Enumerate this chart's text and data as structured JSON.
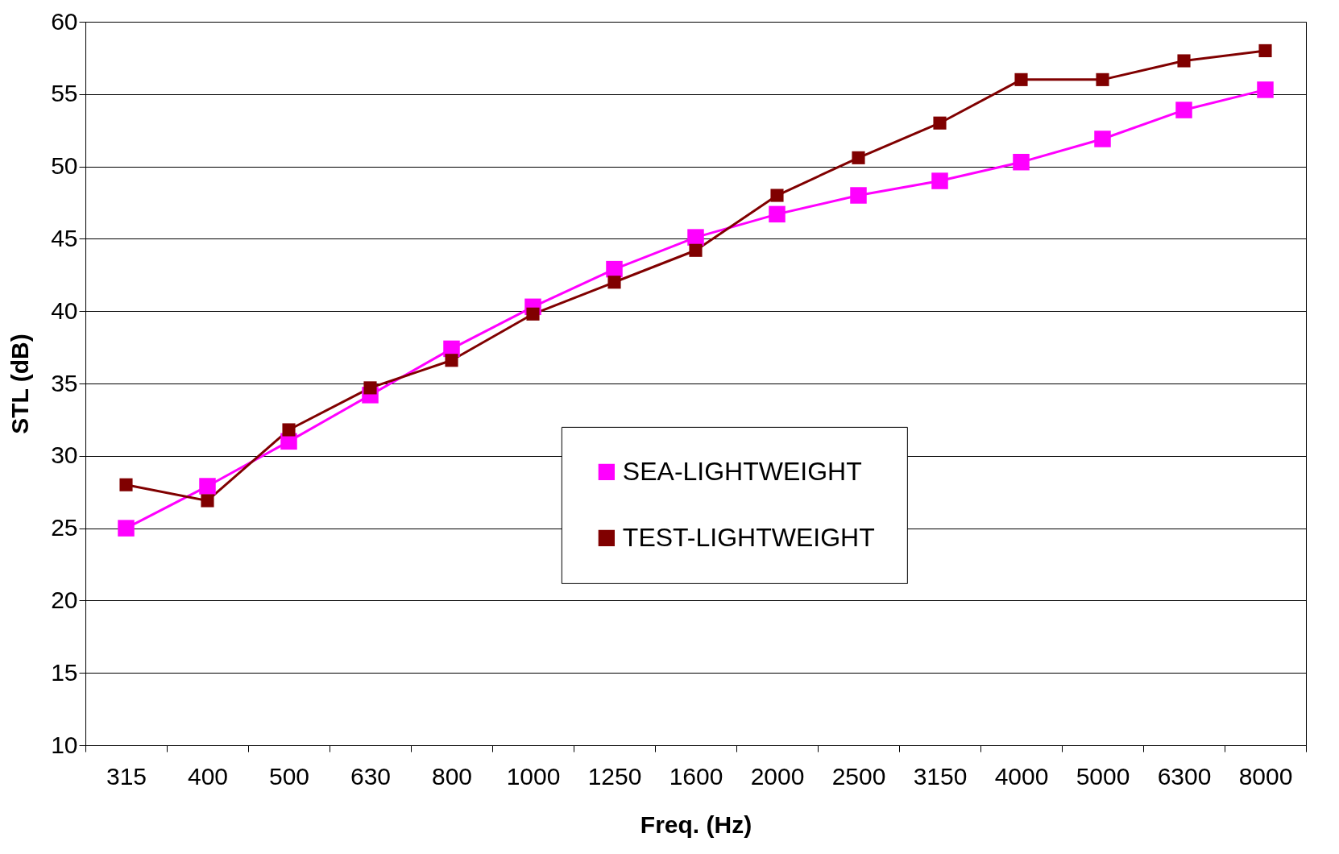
{
  "chart_data": {
    "type": "line",
    "xlabel": "Freq. (Hz)",
    "ylabel": "STL (dB)",
    "categories": [
      "315",
      "400",
      "500",
      "630",
      "800",
      "1000",
      "1250",
      "1600",
      "2000",
      "2500",
      "3150",
      "4000",
      "5000",
      "6300",
      "8000"
    ],
    "series": [
      {
        "name": "SEA-LIGHTWEIGHT",
        "color": "#ff00ff",
        "values": [
          25.0,
          27.9,
          31.0,
          34.2,
          37.4,
          40.3,
          42.9,
          45.1,
          46.7,
          48.0,
          49.0,
          50.3,
          51.9,
          53.9,
          55.3
        ]
      },
      {
        "name": "TEST-LIGHTWEIGHT",
        "color": "#800000",
        "values": [
          28.0,
          26.9,
          31.8,
          34.7,
          36.6,
          39.8,
          42.0,
          44.2,
          48.0,
          50.6,
          53.0,
          56.0,
          56.0,
          57.3,
          58.0
        ]
      }
    ],
    "ylim": [
      10,
      60
    ],
    "yticks": [
      10,
      15,
      20,
      25,
      30,
      35,
      40,
      45,
      50,
      55,
      60
    ],
    "grid": "y",
    "legend": "center",
    "marker": "square",
    "line_style": "solid"
  }
}
